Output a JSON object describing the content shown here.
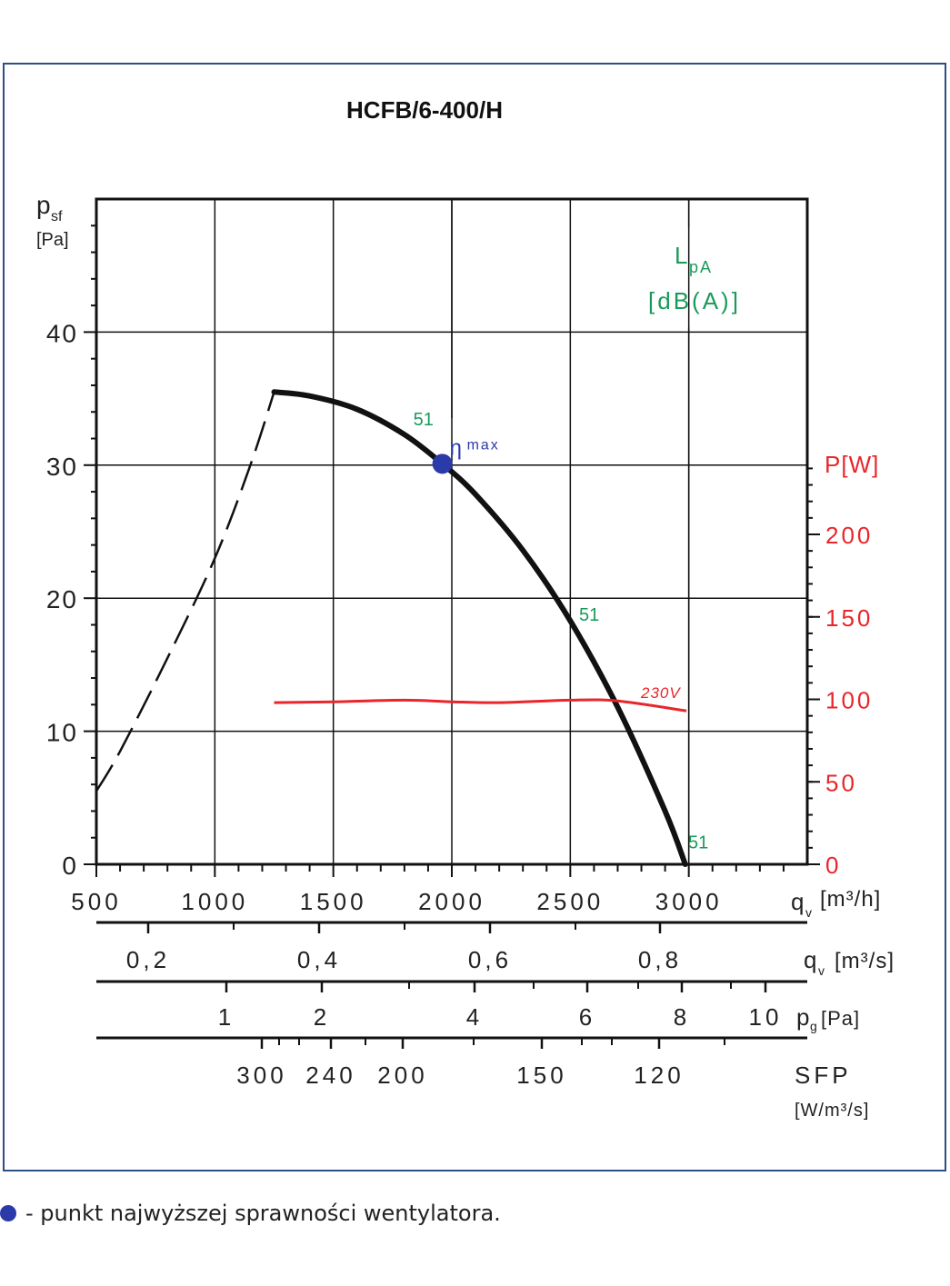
{
  "chart_data": {
    "type": "line",
    "title": "HCFB/6-400/H",
    "x_axis": {
      "label": "qv [m³/h]",
      "range": [
        500,
        3500
      ],
      "ticks": [
        "500",
        "1000",
        "1500",
        "2000",
        "2500",
        "3000"
      ],
      "tick_values": [
        500,
        1000,
        1500,
        2000,
        2500,
        3000
      ]
    },
    "y_axis": {
      "label": "psf",
      "unit": "[Pa]",
      "range": [
        0,
        50
      ],
      "ticks": [
        "0",
        "10",
        "20",
        "30",
        "40"
      ],
      "tick_values": [
        0,
        10,
        20,
        30,
        40
      ]
    },
    "y2_axis": {
      "label": "P[W]",
      "ticks": [
        "0",
        "50",
        "100",
        "150",
        "200"
      ],
      "tick_values": [
        0,
        50,
        100,
        150,
        200
      ],
      "color": "#e8262b"
    },
    "secondary_scales": [
      {
        "label": "qv [m³/s]",
        "ticks": [
          "0,2",
          "0,4",
          "0,6",
          "0,8"
        ],
        "values": [
          0.2,
          0.4,
          0.6,
          0.8
        ]
      },
      {
        "label": "pg[Pa]",
        "ticks": [
          "1",
          "2",
          "4",
          "6",
          "8",
          "10"
        ],
        "values": [
          1,
          2,
          4,
          6,
          8,
          10
        ]
      },
      {
        "label": "SFP",
        "unit": "[W/m³/s]",
        "ticks": [
          "300",
          "240",
          "200",
          "150",
          "120"
        ],
        "values": [
          300,
          240,
          200,
          150,
          120
        ]
      }
    ],
    "lpa_label": "LpA",
    "lpa_unit": "[dB(A)]",
    "series": [
      {
        "style": "solid",
        "color": "#111111",
        "x": [
          1250,
          1400,
          1600,
          1800,
          1960,
          2100,
          2300,
          2500,
          2700,
          2900,
          2985
        ],
        "y": [
          35.5,
          35.2,
          34.2,
          32.3,
          30.1,
          27.8,
          23.6,
          18.3,
          11.8,
          4.0,
          0.0
        ]
      },
      {
        "style": "dashed",
        "color": "#111111",
        "x": [
          500,
          600,
          800,
          1000,
          1150,
          1250
        ],
        "y": [
          5.5,
          8.5,
          15.5,
          23.0,
          30.0,
          35.5
        ]
      },
      {
        "name": "230V",
        "axis": "y2",
        "color": "#e8262b",
        "x": [
          1250,
          1500,
          1800,
          2000,
          2200,
          2500,
          2700,
          2990
        ],
        "y": [
          98,
          98.5,
          99.5,
          98.5,
          98,
          99.5,
          99,
          93
        ]
      }
    ],
    "annotations": [
      {
        "text": "51",
        "x": 1880,
        "y": 33,
        "color": "#1a9a5a"
      },
      {
        "text": "51",
        "x": 2580,
        "y": 18.3,
        "color": "#1a9a5a"
      },
      {
        "text": "51",
        "x": 3040,
        "y": 1.2,
        "color": "#1a9a5a"
      }
    ],
    "marker": {
      "label": "η",
      "sub": "max",
      "x": 1960,
      "y": 30.1,
      "color": "#2a3aa8"
    }
  },
  "legend_text": "- punkt najwyższej sprawności wentylatora."
}
